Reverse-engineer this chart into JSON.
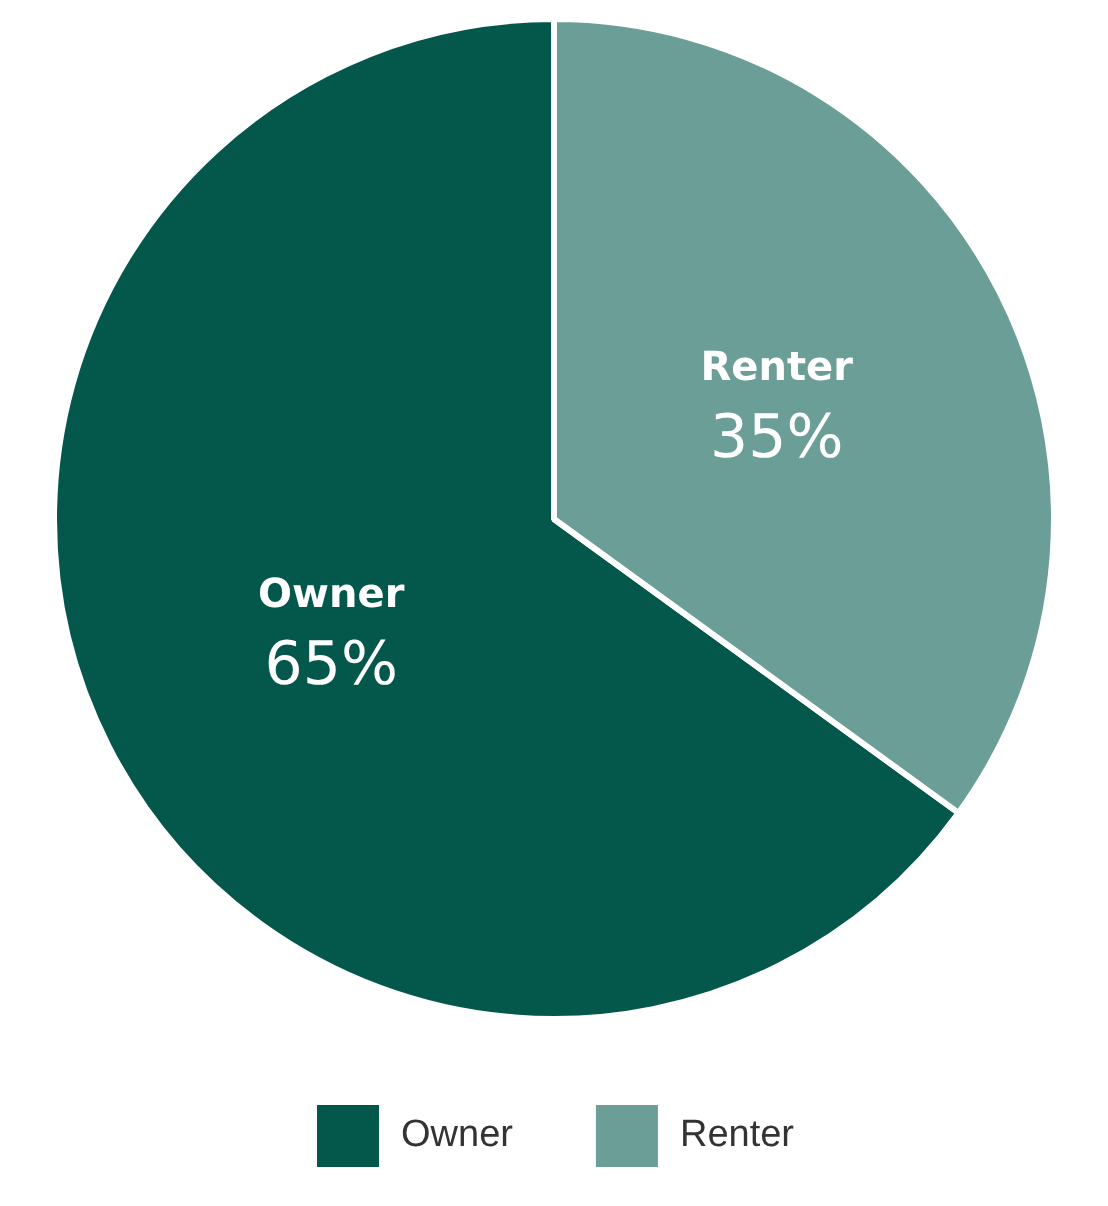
{
  "chart_data": {
    "type": "pie",
    "categories": [
      "Owner",
      "Renter"
    ],
    "values": [
      65,
      35
    ],
    "colors": [
      "#03574b",
      "#6a9e96"
    ],
    "value_labels": [
      "65%",
      "35%"
    ],
    "legend": "bottom"
  }
}
